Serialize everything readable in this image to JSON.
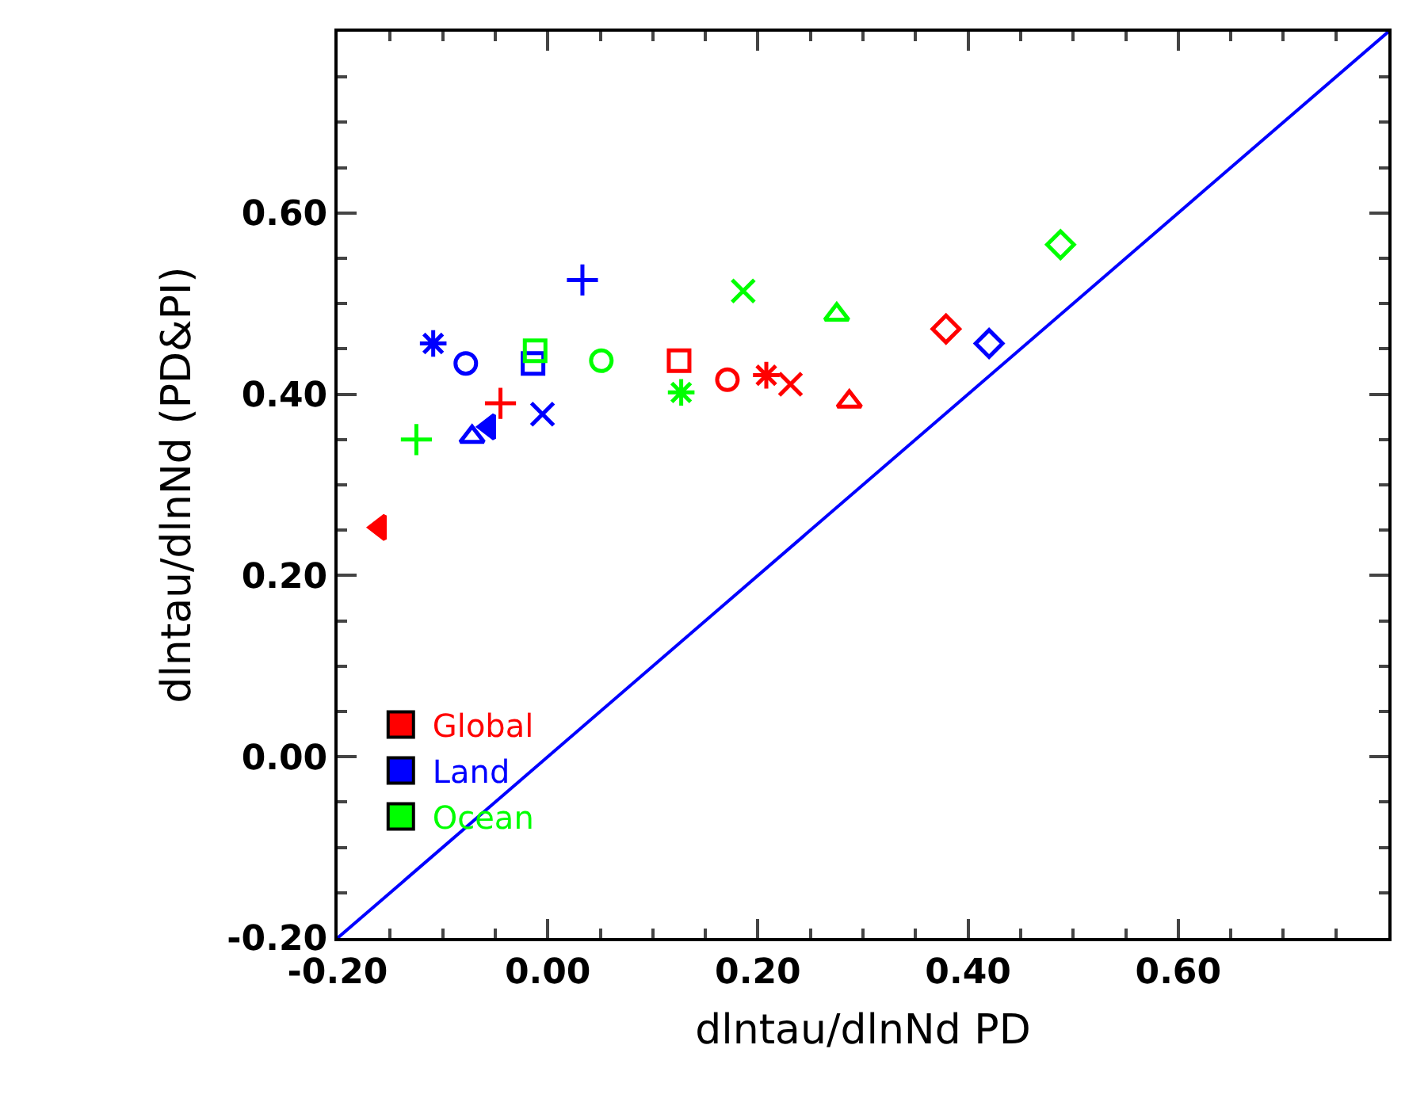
{
  "chart_data": {
    "type": "scatter",
    "xlabel": "dlntau/dlnNd PD",
    "ylabel": "dlntau/dlnNd (PD&PI)",
    "xlim": [
      -0.2,
      0.8
    ],
    "ylim": [
      -0.2,
      0.8
    ],
    "xticks": [
      {
        "value": -0.2,
        "label": "-0.20"
      },
      {
        "value": 0,
        "label": "0.00"
      },
      {
        "value": 0.2,
        "label": "0.20"
      },
      {
        "value": 0.4,
        "label": "0.40"
      },
      {
        "value": 0.6,
        "label": "0.60"
      },
      {
        "value": 0.8,
        "label": null
      }
    ],
    "yticks": [
      {
        "value": -0.2,
        "label": "-0.20"
      },
      {
        "value": 0,
        "label": "0.00"
      },
      {
        "value": 0.2,
        "label": "0.20"
      },
      {
        "value": 0.4,
        "label": "0.40"
      },
      {
        "value": 0.6,
        "label": "0.60"
      },
      {
        "value": 0.8,
        "label": null
      }
    ],
    "legend": "bottom left",
    "series": [
      {
        "name": "Global",
        "color": "#ff0000",
        "x": [
          -0.16,
          -0.045,
          0.125,
          0.171,
          0.208,
          0.231,
          0.287,
          0.379
        ],
        "values": [
          0.253,
          0.39,
          0.437,
          0.416,
          0.421,
          0.411,
          0.392,
          0.472
        ],
        "marker": [
          "triangle-left-filled",
          "cross",
          "square",
          "circle",
          "star",
          "x",
          "triangle",
          "diamond"
        ]
      },
      {
        "name": "Land",
        "color": "#0000ff",
        "x": [
          -0.109,
          -0.078,
          -0.014,
          0.033,
          -0.005,
          -0.072,
          -0.056,
          0.42
        ],
        "values": [
          0.456,
          0.434,
          0.434,
          0.526,
          0.378,
          0.353,
          0.364,
          0.456
        ],
        "marker": [
          "star",
          "circle",
          "square",
          "cross",
          "x",
          "triangle",
          "triangle-left-filled",
          "diamond"
        ]
      },
      {
        "name": "Ocean",
        "color": "#00ff00",
        "x": [
          -0.125,
          -0.012,
          0.051,
          0.127,
          0.186,
          0.275,
          0.488
        ],
        "values": [
          0.35,
          0.448,
          0.437,
          0.402,
          0.514,
          0.488,
          0.565
        ],
        "marker": [
          "cross",
          "square",
          "circle",
          "star",
          "x",
          "triangle",
          "diamond"
        ]
      },
      {
        "type": "line",
        "color": "#0000ff",
        "x": [
          -0.2,
          0.8
        ],
        "values": [
          -0.2,
          0.8
        ],
        "marker": "none",
        "line_style": "solid"
      }
    ]
  }
}
